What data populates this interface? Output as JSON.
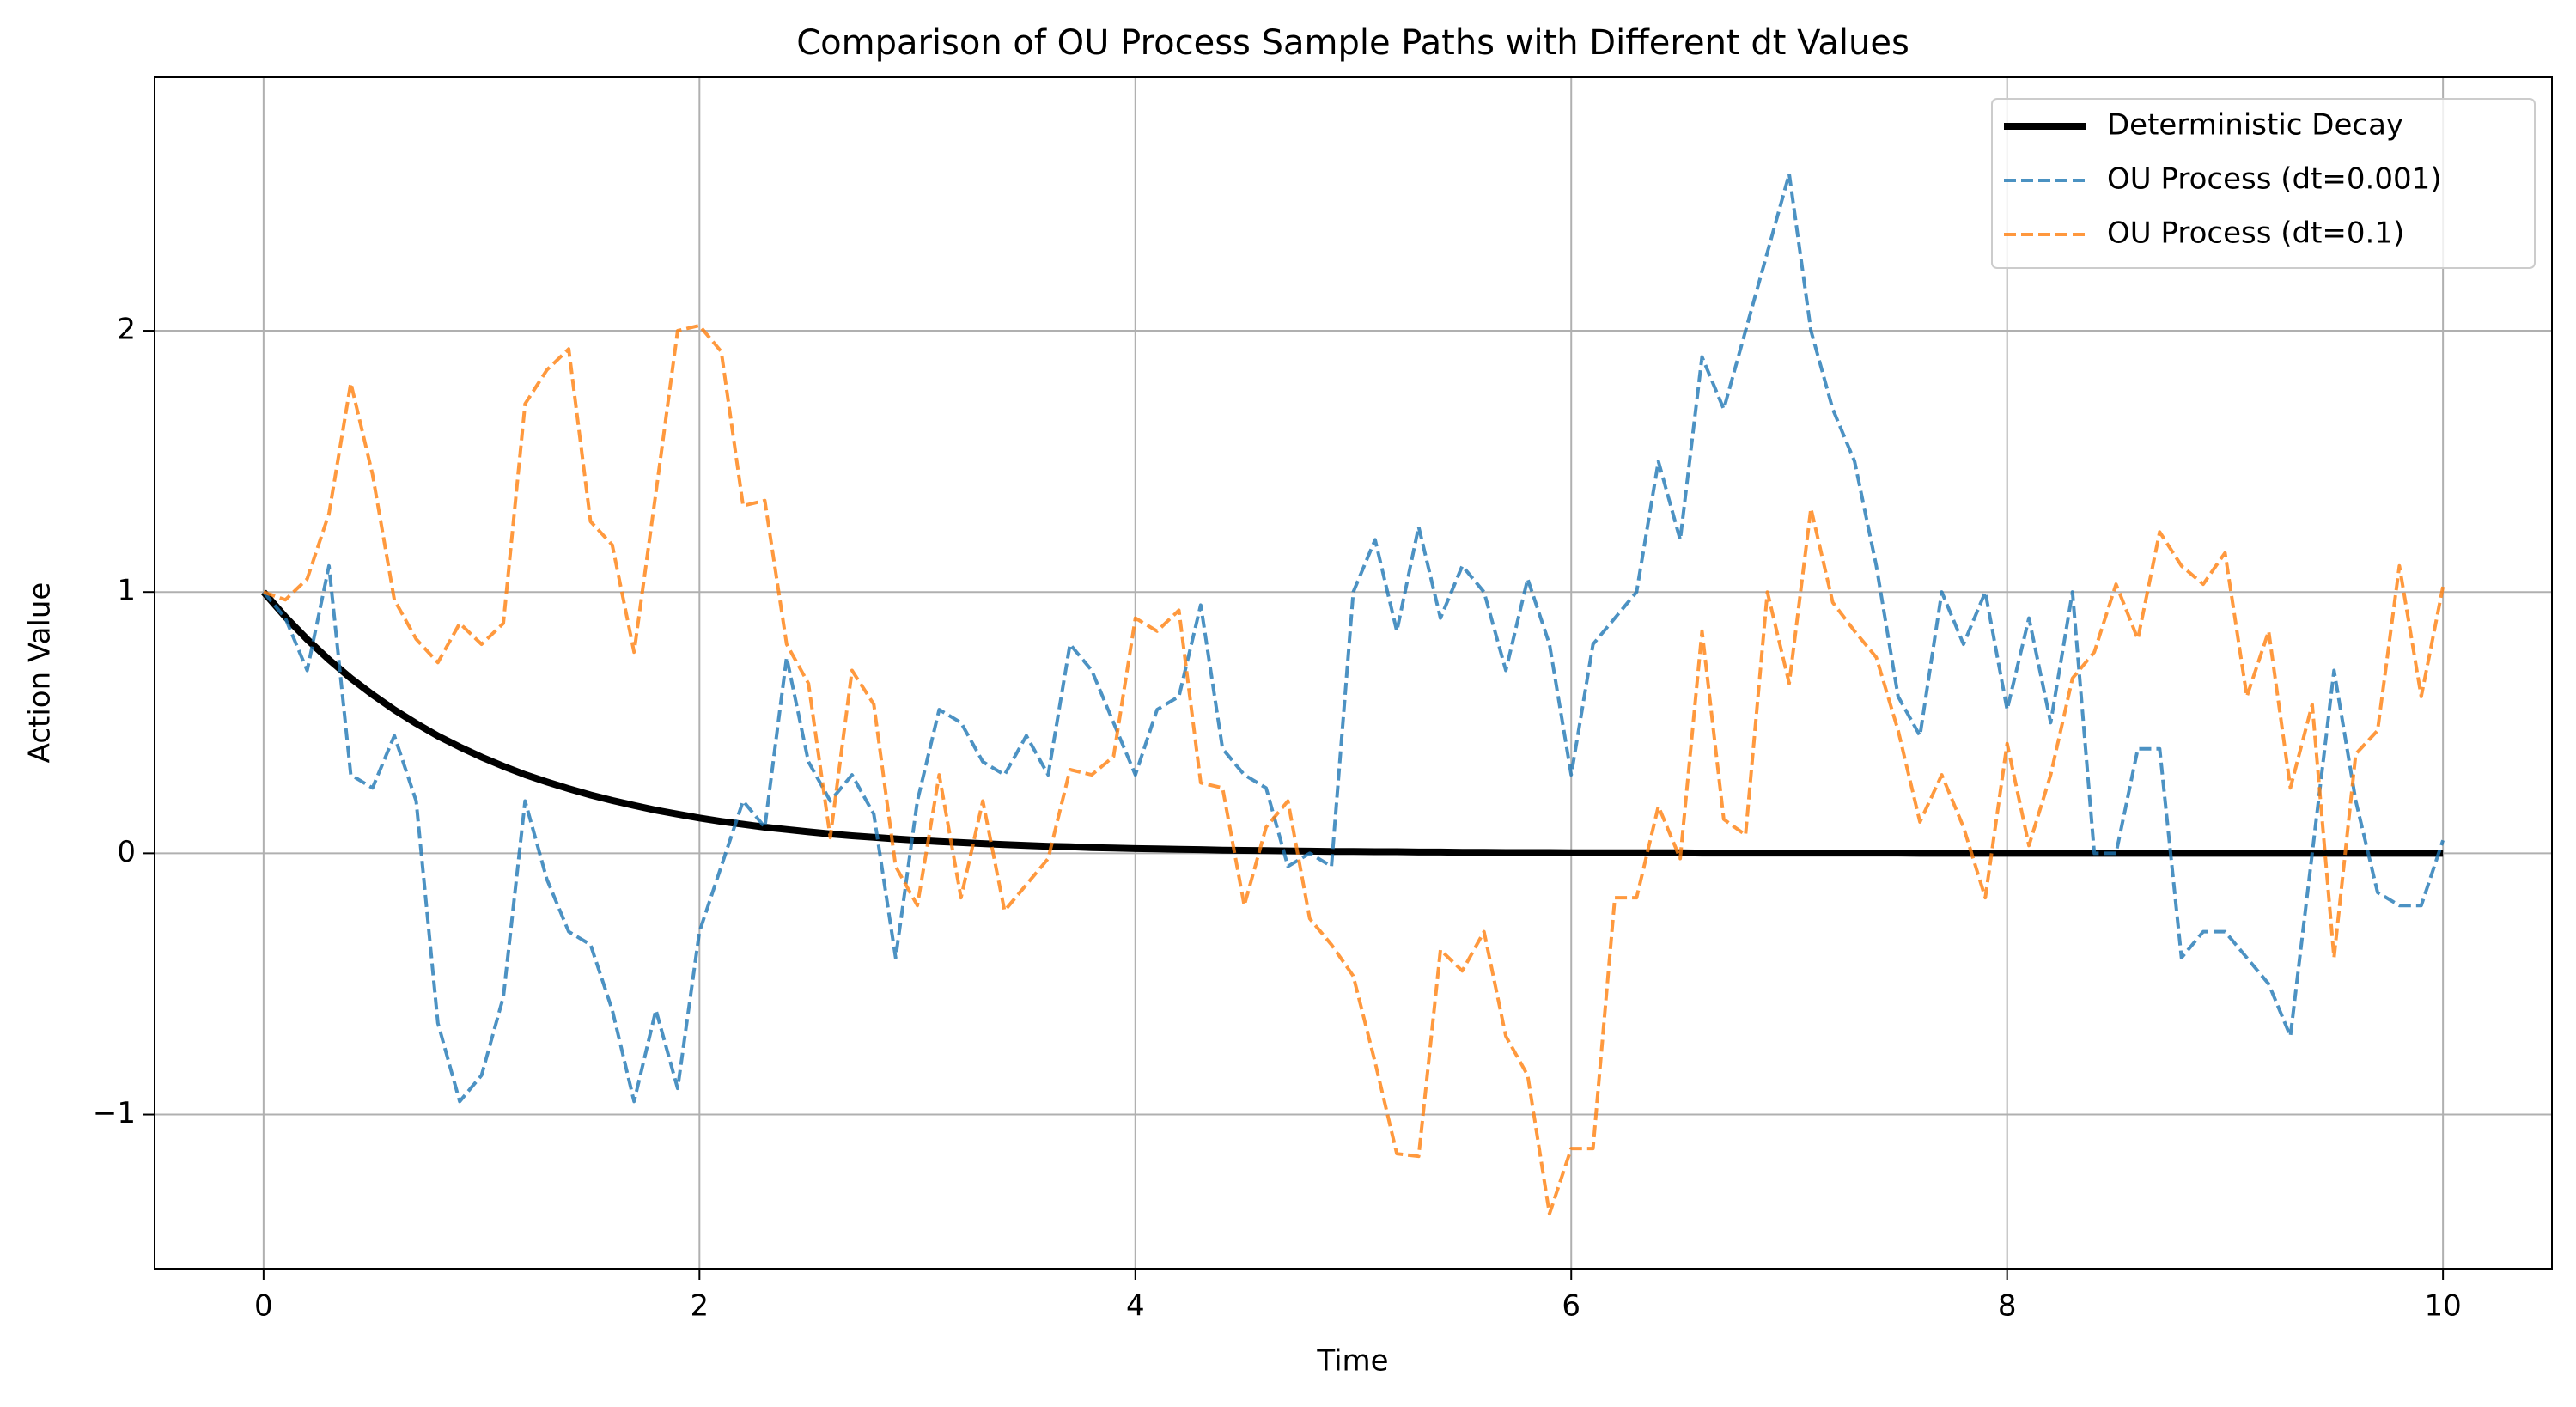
{
  "chart_data": {
    "type": "line",
    "title": "Comparison of OU Process Sample Paths with Different dt Values",
    "x_label": "Time",
    "y_label": "Action Value",
    "x": [
      0,
      0.1,
      0.2,
      0.3,
      0.4,
      0.5,
      0.6,
      0.7,
      0.8,
      0.9,
      1,
      1.1,
      1.2,
      1.3,
      1.4,
      1.5,
      1.6,
      1.7,
      1.8,
      1.9,
      2,
      2.1,
      2.2,
      2.3,
      2.4,
      2.5,
      2.6,
      2.7,
      2.8,
      2.9,
      3,
      3.1,
      3.2,
      3.3,
      3.4,
      3.5,
      3.6,
      3.7,
      3.8,
      3.9,
      4,
      4.1,
      4.2,
      4.3,
      4.4,
      4.5,
      4.6,
      4.7,
      4.8,
      4.9,
      5,
      5.1,
      5.2,
      5.3,
      5.4,
      5.5,
      5.6,
      5.7,
      5.8,
      5.9,
      6,
      6.1,
      6.2,
      6.3,
      6.4,
      6.5,
      6.6,
      6.7,
      6.8,
      6.9,
      7,
      7.1,
      7.2,
      7.3,
      7.4,
      7.5,
      7.6,
      7.7,
      7.8,
      7.9,
      8,
      8.1,
      8.2,
      8.3,
      8.4,
      8.5,
      8.6,
      8.7,
      8.8,
      8.9,
      9,
      9.1,
      9.2,
      9.3,
      9.4,
      9.5,
      9.6,
      9.7,
      9.8,
      9.9,
      10
    ],
    "series": [
      {
        "name": "Deterministic Decay",
        "color": "#000000",
        "dashed": false,
        "values": [
          1,
          0.905,
          0.819,
          0.741,
          0.67,
          0.607,
          0.549,
          0.497,
          0.449,
          0.407,
          0.368,
          0.333,
          0.301,
          0.273,
          0.247,
          0.223,
          0.202,
          0.183,
          0.165,
          0.15,
          0.135,
          0.122,
          0.111,
          0.1,
          0.091,
          0.082,
          0.074,
          0.067,
          0.061,
          0.055,
          0.05,
          0.045,
          0.041,
          0.037,
          0.033,
          0.03,
          0.027,
          0.025,
          0.022,
          0.02,
          0.018,
          0.017,
          0.015,
          0.014,
          0.012,
          0.011,
          0.01,
          0.009,
          0.008,
          0.007,
          0.007,
          0.006,
          0.006,
          0.005,
          0.005,
          0.004,
          0.004,
          0.003,
          0.003,
          0.003,
          0.002,
          0.002,
          0.002,
          0.002,
          0.002,
          0.002,
          0.001,
          0.001,
          0.001,
          0.001,
          0.001,
          0.001,
          0.001,
          0.001,
          0.001,
          0.001,
          0,
          0,
          0,
          0,
          0,
          0,
          0,
          0,
          0,
          0,
          0,
          0,
          0,
          0,
          0,
          0,
          0,
          0,
          0,
          0,
          0,
          0,
          0,
          0,
          0
        ]
      },
      {
        "name": "OU Process (dt=0.001)",
        "color": "#1f77b4",
        "dashed": true,
        "values": [
          1.0,
          0.9,
          0.7,
          1.1,
          0.3,
          0.25,
          0.45,
          0.2,
          -0.65,
          -0.95,
          -0.85,
          -0.55,
          0.2,
          -0.1,
          -0.3,
          -0.35,
          -0.6,
          -0.95,
          -0.6,
          -0.9,
          -0.3,
          -0.05,
          0.2,
          0.1,
          0.75,
          0.35,
          0.2,
          0.3,
          0.15,
          -0.4,
          0.2,
          0.55,
          0.5,
          0.35,
          0.3,
          0.45,
          0.3,
          0.8,
          0.7,
          0.5,
          0.3,
          0.55,
          0.6,
          0.95,
          0.4,
          0.3,
          0.25,
          -0.05,
          0,
          -0.05,
          1.0,
          1.2,
          0.85,
          1.25,
          0.9,
          1.1,
          1.0,
          0.7,
          1.05,
          0.8,
          0.3,
          0.8,
          0.9,
          1.0,
          1.5,
          1.2,
          1.9,
          1.7,
          2.0,
          2.3,
          2.6,
          2.0,
          1.7,
          1.5,
          1.1,
          0.6,
          0.45,
          1.0,
          0.8,
          1.0,
          0.55,
          0.9,
          0.5,
          1.0,
          0,
          0,
          0.4,
          0.4,
          -0.4,
          -0.3,
          -0.3,
          -0.4,
          -0.5,
          -0.7,
          0,
          0.7,
          0.2,
          -0.15,
          -0.2,
          -0.2,
          0.05
        ]
      },
      {
        "name": "OU Process (dt=0.1)",
        "color": "#ff7f0e",
        "dashed": true,
        "values": [
          1.0,
          0.97,
          1.05,
          1.3,
          1.8,
          1.45,
          0.97,
          0.82,
          0.73,
          0.88,
          0.8,
          0.88,
          1.72,
          1.85,
          1.93,
          1.27,
          1.18,
          0.77,
          1.38,
          2.0,
          2.02,
          1.92,
          1.33,
          1.35,
          0.8,
          0.65,
          0.06,
          0.7,
          0.57,
          -0.05,
          -0.2,
          0.3,
          -0.17,
          0.2,
          -0.22,
          -0.12,
          -0.02,
          0.32,
          0.3,
          0.37,
          0.9,
          0.85,
          0.93,
          0.27,
          0.25,
          -0.2,
          0.1,
          0.2,
          -0.25,
          -0.35,
          -0.47,
          -0.8,
          -1.15,
          -1.16,
          -0.37,
          -0.45,
          -0.3,
          -0.7,
          -0.85,
          -1.38,
          -1.13,
          -1.13,
          -0.17,
          -0.17,
          0.18,
          -0.02,
          0.85,
          0.13,
          0.07,
          1.0,
          0.65,
          1.32,
          0.96,
          0.85,
          0.75,
          0.47,
          0.12,
          0.3,
          0.1,
          -0.17,
          0.42,
          0.03,
          0.3,
          0.67,
          0.77,
          1.03,
          0.82,
          1.23,
          1.1,
          1.03,
          1.15,
          0.6,
          0.85,
          0.25,
          0.57,
          -0.4,
          0.38,
          0.47,
          1.1,
          0.6,
          1.02
        ]
      }
    ],
    "xlim": [
      -0.5,
      10.5
    ],
    "xticks": [
      0,
      2,
      4,
      6,
      8,
      10
    ],
    "ylim": [
      -1.59,
      2.97
    ],
    "yticks": [
      {
        "value": -1,
        "label": "−1"
      },
      0,
      1,
      2
    ],
    "grid": true,
    "legend": "upper right"
  }
}
